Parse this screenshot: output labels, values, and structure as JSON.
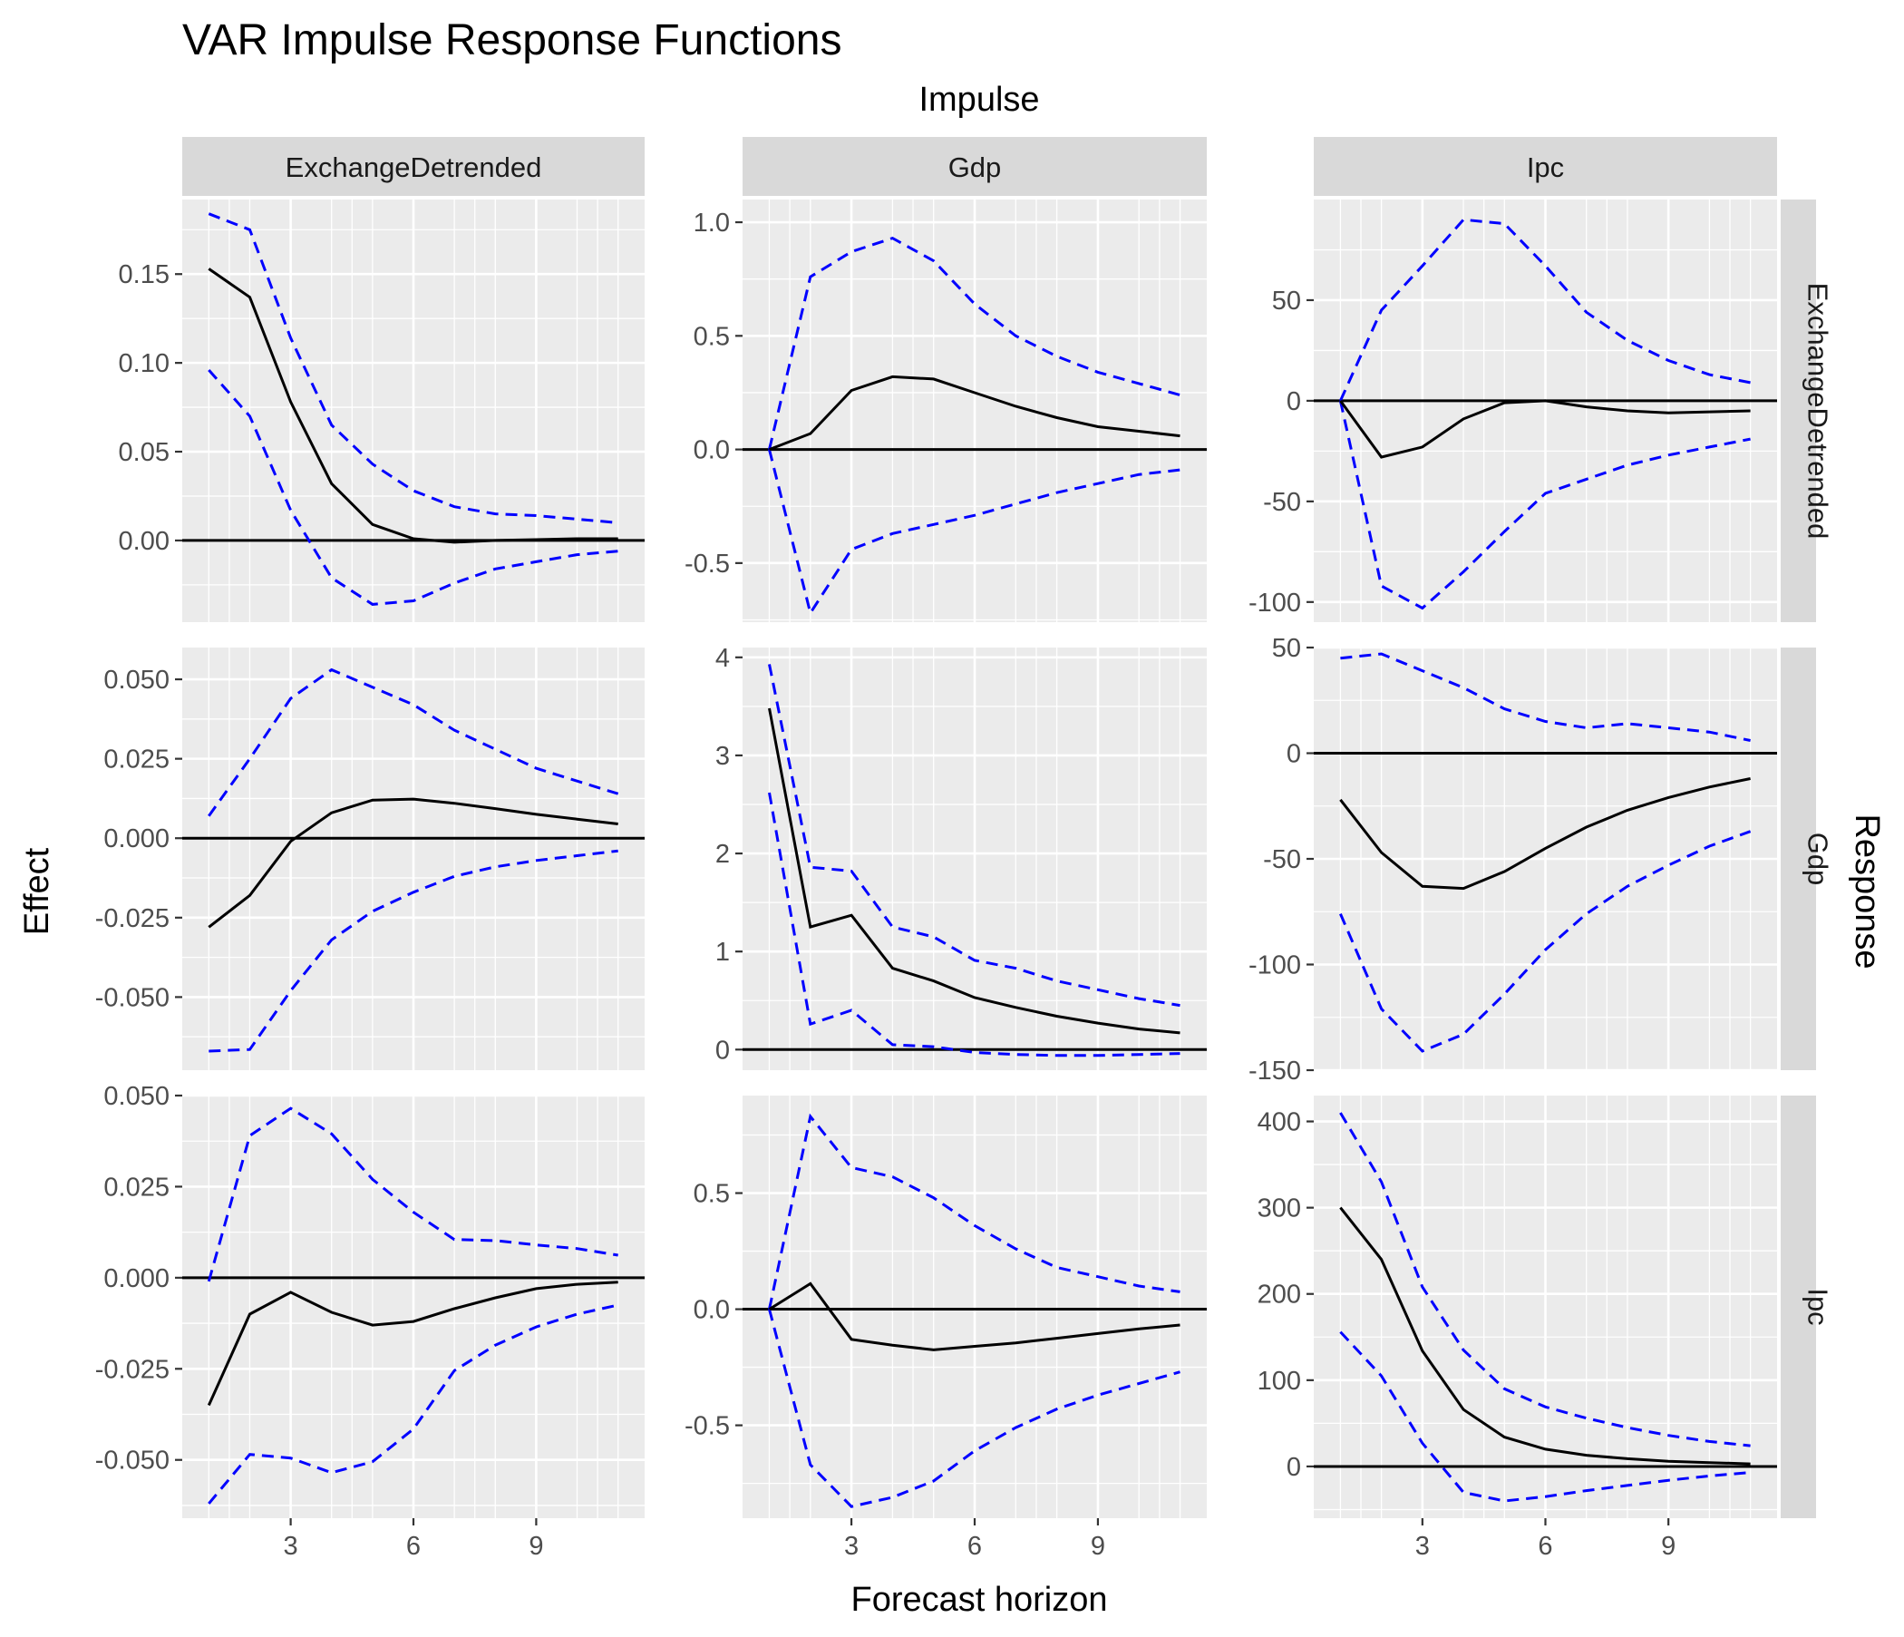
{
  "chart_data": {
    "type": "line",
    "title": "VAR Impulse Response Functions",
    "column_title": "Impulse",
    "row_title": "Response",
    "xlabel": "Forecast horizon",
    "ylabel": "Effect",
    "impulses": [
      "ExchangeDetrended",
      "Gdp",
      "Ipc"
    ],
    "responses": [
      "ExchangeDetrended",
      "Gdp",
      "Ipc"
    ],
    "x": [
      1,
      2,
      3,
      4,
      5,
      6,
      7,
      8,
      9,
      10,
      11
    ],
    "xlim": [
      0.35,
      11.65
    ],
    "x_breaks": [
      3,
      6,
      9
    ],
    "x_tick_labels": [
      "3",
      "6",
      "9"
    ],
    "panels": [
      {
        "impulse": "ExchangeDetrended",
        "response": "ExchangeDetrended",
        "ylim": [
          -0.046,
          0.192
        ],
        "y_breaks": [
          0,
          0.05,
          0.1,
          0.15
        ],
        "y_tick_labels": [
          "0.00",
          "0.05",
          "0.10",
          "0.15"
        ],
        "irf": [
          0.153,
          0.137,
          0.078,
          0.032,
          0.009,
          0.001,
          -0.001,
          0.0,
          0.0005,
          0.001,
          0.001
        ],
        "lower": [
          0.096,
          0.07,
          0.017,
          -0.021,
          -0.036,
          -0.034,
          -0.024,
          -0.016,
          -0.012,
          -0.008,
          -0.006
        ],
        "upper": [
          0.184,
          0.175,
          0.114,
          0.065,
          0.043,
          0.028,
          0.019,
          0.015,
          0.014,
          0.012,
          0.01
        ]
      },
      {
        "impulse": "Gdp",
        "response": "ExchangeDetrended",
        "ylim": [
          -0.76,
          1.1
        ],
        "y_breaks": [
          -0.5,
          0,
          0.5,
          1.0
        ],
        "y_tick_labels": [
          "-0.5",
          "0.0",
          "0.5",
          "1.0"
        ],
        "irf": [
          0.0,
          0.07,
          0.26,
          0.32,
          0.31,
          0.25,
          0.19,
          0.14,
          0.1,
          0.08,
          0.06
        ],
        "lower": [
          0.0,
          -0.72,
          -0.44,
          -0.37,
          -0.33,
          -0.29,
          -0.24,
          -0.19,
          -0.15,
          -0.11,
          -0.09
        ],
        "upper": [
          0.0,
          0.76,
          0.87,
          0.93,
          0.83,
          0.64,
          0.5,
          0.41,
          0.34,
          0.29,
          0.24
        ]
      },
      {
        "impulse": "Ipc",
        "response": "ExchangeDetrended",
        "ylim": [
          -110,
          100
        ],
        "y_breaks": [
          -100,
          -50,
          0,
          50
        ],
        "y_tick_labels": [
          "-100",
          "-50",
          "0",
          "50"
        ],
        "irf": [
          0.0,
          -28,
          -23,
          -9,
          -1,
          0,
          -3,
          -5,
          -6,
          -5.5,
          -5
        ],
        "lower": [
          0.0,
          -92,
          -103,
          -85,
          -65,
          -46,
          -39,
          -32,
          -27,
          -23,
          -19
        ],
        "upper": [
          0.0,
          45,
          67,
          90,
          88,
          67,
          44,
          30,
          20,
          13,
          9
        ]
      },
      {
        "impulse": "ExchangeDetrended",
        "response": "Gdp",
        "ylim": [
          -0.073,
          0.06
        ],
        "y_breaks": [
          -0.05,
          -0.025,
          0,
          0.025,
          0.05
        ],
        "y_tick_labels": [
          "-0.050",
          "-0.025",
          "0.000",
          "0.025",
          "0.050"
        ],
        "irf": [
          -0.028,
          -0.018,
          -0.001,
          0.008,
          0.012,
          0.0123,
          0.011,
          0.0093,
          0.0075,
          0.006,
          0.0045
        ],
        "lower": [
          -0.067,
          -0.0665,
          -0.048,
          -0.032,
          -0.023,
          -0.017,
          -0.012,
          -0.009,
          -0.007,
          -0.0055,
          -0.004
        ],
        "upper": [
          0.007,
          0.025,
          0.044,
          0.053,
          0.0475,
          0.042,
          0.034,
          0.028,
          0.022,
          0.018,
          0.014
        ]
      },
      {
        "impulse": "Gdp",
        "response": "Gdp",
        "ylim": [
          -0.21,
          4.1
        ],
        "y_breaks": [
          0,
          1,
          2,
          3,
          4
        ],
        "y_tick_labels": [
          "0",
          "1",
          "2",
          "3",
          "4"
        ],
        "irf": [
          3.48,
          1.25,
          1.37,
          0.83,
          0.7,
          0.53,
          0.43,
          0.34,
          0.27,
          0.21,
          0.17
        ],
        "lower": [
          2.62,
          0.26,
          0.4,
          0.05,
          0.03,
          -0.03,
          -0.05,
          -0.06,
          -0.06,
          -0.05,
          -0.04
        ],
        "upper": [
          3.93,
          1.86,
          1.82,
          1.25,
          1.15,
          0.91,
          0.83,
          0.7,
          0.61,
          0.52,
          0.45
        ]
      },
      {
        "impulse": "Ipc",
        "response": "Gdp",
        "ylim": [
          -150,
          50
        ],
        "y_breaks": [
          -150,
          -100,
          -50,
          0,
          50
        ],
        "y_tick_labels": [
          "-150",
          "-100",
          "-50",
          "0",
          "50"
        ],
        "irf": [
          -22,
          -47,
          -63,
          -64,
          -56,
          -45,
          -35,
          -27,
          -21,
          -16,
          -12
        ],
        "lower": [
          -76,
          -121,
          -141,
          -133,
          -114,
          -93,
          -76,
          -63,
          -53,
          -44,
          -37
        ],
        "upper": [
          45,
          47,
          39,
          31,
          21,
          15,
          12,
          14,
          12,
          10,
          6
        ]
      },
      {
        "impulse": "ExchangeDetrended",
        "response": "Ipc",
        "ylim": [
          -0.066,
          0.05
        ],
        "y_breaks": [
          -0.05,
          -0.025,
          0,
          0.025,
          0.05
        ],
        "y_tick_labels": [
          "-0.050",
          "-0.025",
          "0.000",
          "0.025",
          "0.050"
        ],
        "irf": [
          -0.035,
          -0.01,
          -0.004,
          -0.0095,
          -0.013,
          -0.012,
          -0.0085,
          -0.0055,
          -0.003,
          -0.0018,
          -0.0012
        ],
        "lower": [
          -0.062,
          -0.0485,
          -0.0495,
          -0.0535,
          -0.0505,
          -0.0415,
          -0.0255,
          -0.0185,
          -0.0135,
          -0.01,
          -0.0075
        ],
        "upper": [
          -0.001,
          0.039,
          0.0465,
          0.0395,
          0.027,
          0.018,
          0.0105,
          0.0102,
          0.009,
          0.008,
          0.0062
        ]
      },
      {
        "impulse": "Gdp",
        "response": "Ipc",
        "ylim": [
          -0.9,
          0.92
        ],
        "y_breaks": [
          -0.5,
          0,
          0.5
        ],
        "y_tick_labels": [
          "-0.5",
          "0.0",
          "0.5"
        ],
        "irf": [
          0.0,
          0.11,
          -0.13,
          -0.155,
          -0.175,
          -0.16,
          -0.145,
          -0.125,
          -0.105,
          -0.085,
          -0.068
        ],
        "lower": [
          0.0,
          -0.67,
          -0.85,
          -0.81,
          -0.74,
          -0.61,
          -0.51,
          -0.43,
          -0.37,
          -0.32,
          -0.27
        ],
        "upper": [
          0.0,
          0.83,
          0.61,
          0.57,
          0.48,
          0.36,
          0.26,
          0.18,
          0.14,
          0.1,
          0.075
        ]
      },
      {
        "impulse": "Ipc",
        "response": "Ipc",
        "ylim": [
          -60,
          430
        ],
        "y_breaks": [
          0,
          100,
          200,
          300,
          400
        ],
        "y_tick_labels": [
          "0",
          "100",
          "200",
          "300",
          "400"
        ],
        "irf": [
          300,
          240,
          134,
          66,
          34,
          20,
          13,
          9,
          6,
          4.5,
          3
        ],
        "lower": [
          156,
          105,
          27,
          -30,
          -40,
          -35,
          -28,
          -22,
          -16,
          -11,
          -7
        ],
        "upper": [
          410,
          330,
          208,
          135,
          90,
          69,
          56,
          45,
          36,
          29,
          24
        ]
      }
    ]
  }
}
